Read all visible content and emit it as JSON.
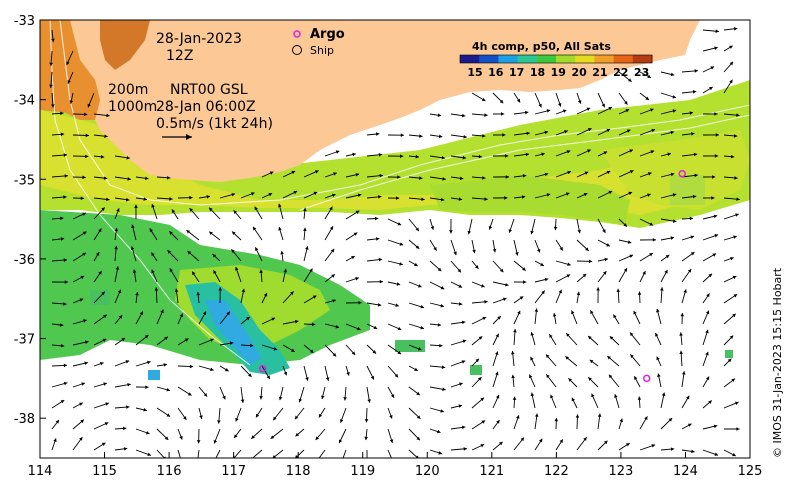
{
  "annotations": {
    "date": "28-Jan-2023",
    "hour": "12Z",
    "contour_label": "200m",
    "contour_label2": "1000m",
    "product": "NRT00 GSL",
    "product_time": "28-Jan 06:00Z",
    "scale_text": "0.5m/s (1kt 24h)"
  },
  "legend": {
    "argo_label": "Argo",
    "ship_label": "Ship",
    "argo_color": "#e020e0"
  },
  "colorbar": {
    "title": "4h comp, p50, All Sats",
    "ticks": [
      "15",
      "16",
      "17",
      "18",
      "19",
      "20",
      "21",
      "22",
      "23"
    ],
    "colors": [
      "#1a1a8c",
      "#1450c8",
      "#1ea0e6",
      "#28c896",
      "#3cc83c",
      "#a0dc28",
      "#e6dc1e",
      "#f0a028",
      "#e66414",
      "#b43c14"
    ]
  },
  "credit": "© IMOS 31-Jan-2023 15:15 Hobart",
  "map": {
    "lon_min": 114,
    "lon_max": 125,
    "lat_min": -38.5,
    "lat_max": -33,
    "x_ticks": [
      "114",
      "115",
      "116",
      "117",
      "118",
      "119",
      "120",
      "121",
      "122",
      "123",
      "124",
      "125"
    ],
    "y_ticks": [
      "-33",
      "-34",
      "-35",
      "-36",
      "-37",
      "-38"
    ],
    "land_color": "#fbc896",
    "argo_floats": [
      {
        "lon": 117.45,
        "lat": -37.38
      },
      {
        "lon": 123.95,
        "lat": -34.93
      },
      {
        "lon": 123.4,
        "lat": -37.5
      }
    ]
  }
}
